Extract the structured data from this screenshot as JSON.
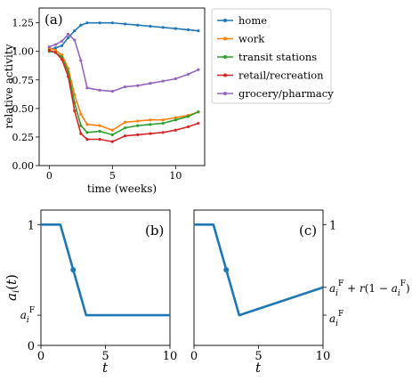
{
  "colors": {
    "home": "#1f77b4",
    "work": "#ff7f0e",
    "transit": "#2ca02c",
    "retail": "#d62728",
    "grocery": "#9467bd",
    "model": "#1f77b4"
  },
  "chart_data": [
    {
      "panel": "(a)",
      "type": "line",
      "xlabel": "time (weeks)",
      "ylabel": "relative activity",
      "xlim": [
        -0.8,
        12.3
      ],
      "ylim": [
        0.0,
        1.38
      ],
      "xticks": [
        0,
        5,
        10
      ],
      "yticks": [
        0.0,
        0.25,
        0.5,
        0.75,
        1.0,
        1.25
      ],
      "ytick_labels": [
        "0.00",
        "0.25",
        "0.50",
        "0.75",
        "1.00",
        "1.25"
      ],
      "legend_position": "outside-right",
      "series": [
        {
          "name": "home",
          "color_key": "home",
          "x": [
            0,
            0.5,
            1.0,
            1.5,
            2.0,
            2.5,
            3.0,
            4.0,
            5.0,
            6.0,
            7.0,
            8.0,
            9.0,
            10.0,
            11.0,
            11.8
          ],
          "y": [
            1.02,
            1.03,
            1.05,
            1.12,
            1.18,
            1.23,
            1.25,
            1.25,
            1.25,
            1.24,
            1.23,
            1.22,
            1.21,
            1.2,
            1.19,
            1.18
          ]
        },
        {
          "name": "work",
          "color_key": "work",
          "x": [
            0,
            0.5,
            1.0,
            1.5,
            2.0,
            2.5,
            3.0,
            4.0,
            5.0,
            6.0,
            7.0,
            8.0,
            9.0,
            10.0,
            11.0,
            11.8
          ],
          "y": [
            1.03,
            1.01,
            0.97,
            0.85,
            0.62,
            0.45,
            0.36,
            0.35,
            0.31,
            0.38,
            0.39,
            0.4,
            0.4,
            0.42,
            0.44,
            0.47
          ]
        },
        {
          "name": "transit stations",
          "color_key": "transit",
          "x": [
            0,
            0.5,
            1.0,
            1.5,
            2.0,
            2.5,
            3.0,
            4.0,
            5.0,
            6.0,
            7.0,
            8.0,
            9.0,
            10.0,
            11.0,
            11.8
          ],
          "y": [
            1.0,
            0.99,
            0.95,
            0.82,
            0.55,
            0.35,
            0.29,
            0.3,
            0.27,
            0.33,
            0.35,
            0.36,
            0.37,
            0.4,
            0.43,
            0.47
          ]
        },
        {
          "name": "retail/recreation",
          "color_key": "retail",
          "x": [
            0,
            0.5,
            1.0,
            1.5,
            2.0,
            2.5,
            3.0,
            4.0,
            5.0,
            6.0,
            7.0,
            8.0,
            9.0,
            10.0,
            11.0,
            11.8
          ],
          "y": [
            1.01,
            0.99,
            0.93,
            0.78,
            0.48,
            0.28,
            0.23,
            0.23,
            0.21,
            0.26,
            0.27,
            0.28,
            0.29,
            0.31,
            0.34,
            0.37
          ]
        },
        {
          "name": "grocery/pharmacy",
          "color_key": "grocery",
          "x": [
            0,
            0.5,
            1.0,
            1.5,
            2.0,
            2.5,
            3.0,
            4.0,
            5.0,
            6.0,
            7.0,
            8.0,
            9.0,
            10.0,
            11.0,
            11.8
          ],
          "y": [
            1.04,
            1.06,
            1.09,
            1.15,
            1.1,
            0.92,
            0.68,
            0.66,
            0.65,
            0.69,
            0.7,
            0.72,
            0.74,
            0.76,
            0.8,
            0.84
          ]
        }
      ],
      "legend": [
        "home",
        "work",
        "transit stations",
        "retail/recreation",
        "grocery/pharmacy"
      ]
    },
    {
      "panel": "(b)",
      "type": "line",
      "xlabel": "t",
      "ylabel": "a_i(t)",
      "xlim": [
        0,
        10
      ],
      "ylim": [
        0,
        1.12
      ],
      "xticks": [
        0,
        5,
        10
      ],
      "ytick_labels_left": [
        "0",
        "a_i^F",
        "1"
      ],
      "ytick_values_left": [
        0,
        0.25,
        1.0
      ],
      "series": [
        {
          "name": "",
          "color_key": "model",
          "x": [
            0,
            1.5,
            3.5,
            10
          ],
          "y": [
            1.0,
            1.0,
            0.25,
            0.25
          ]
        }
      ],
      "marker": {
        "x": 2.5,
        "y": 0.625
      }
    },
    {
      "panel": "(c)",
      "type": "line",
      "xlabel": "t",
      "xlim": [
        0,
        10
      ],
      "ylim": [
        0,
        1.12
      ],
      "xticks": [
        0,
        5,
        10
      ],
      "ytick_labels_right": [
        "1",
        "a_i^F + r(1 − a_i^F)",
        "a_i^F"
      ],
      "ytick_values_right": [
        1.0,
        0.48,
        0.25
      ],
      "series": [
        {
          "name": "",
          "color_key": "model",
          "x": [
            0,
            1.5,
            3.5,
            10
          ],
          "y": [
            1.0,
            1.0,
            0.25,
            0.48
          ]
        }
      ],
      "marker": {
        "x": 2.5,
        "y": 0.625
      }
    }
  ]
}
